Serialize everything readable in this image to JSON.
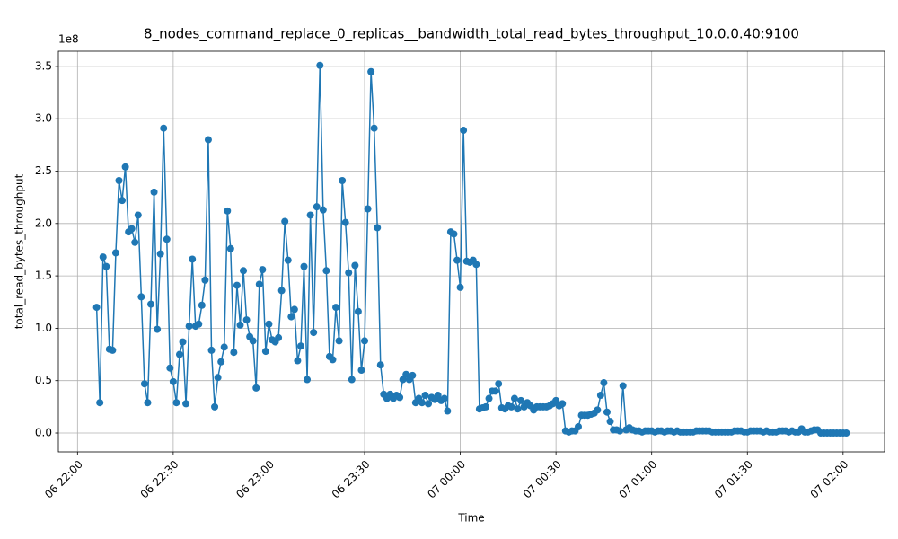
{
  "chart_data": {
    "type": "line",
    "title": "8_nodes_command_replace_0_replicas__bandwidth_total_read_bytes_throughput_10.0.0.40:9100",
    "x_label": "Time",
    "y_label": "total_read_bytes_throughput",
    "y_offset_label": "1e8",
    "x": [
      "06 22:06",
      "06 22:07",
      "06 22:08",
      "06 22:09",
      "06 22:10",
      "06 22:11",
      "06 22:12",
      "06 22:13",
      "06 22:14",
      "06 22:15",
      "06 22:16",
      "06 22:17",
      "06 22:18",
      "06 22:19",
      "06 22:20",
      "06 22:21",
      "06 22:22",
      "06 22:23",
      "06 22:24",
      "06 22:25",
      "06 22:26",
      "06 22:27",
      "06 22:28",
      "06 22:29",
      "06 22:30",
      "06 22:31",
      "06 22:32",
      "06 22:33",
      "06 22:34",
      "06 22:35",
      "06 22:36",
      "06 22:37",
      "06 22:38",
      "06 22:39",
      "06 22:40",
      "06 22:41",
      "06 22:42",
      "06 22:43",
      "06 22:44",
      "06 22:45",
      "06 22:46",
      "06 22:47",
      "06 22:48",
      "06 22:49",
      "06 22:50",
      "06 22:51",
      "06 22:52",
      "06 22:53",
      "06 22:54",
      "06 22:55",
      "06 22:56",
      "06 22:57",
      "06 22:58",
      "06 22:59",
      "06 23:00",
      "06 23:01",
      "06 23:02",
      "06 23:03",
      "06 23:04",
      "06 23:05",
      "06 23:06",
      "06 23:07",
      "06 23:08",
      "06 23:09",
      "06 23:10",
      "06 23:11",
      "06 23:12",
      "06 23:13",
      "06 23:14",
      "06 23:15",
      "06 23:16",
      "06 23:17",
      "06 23:18",
      "06 23:19",
      "06 23:20",
      "06 23:21",
      "06 23:22",
      "06 23:23",
      "06 23:24",
      "06 23:25",
      "06 23:26",
      "06 23:27",
      "06 23:28",
      "06 23:29",
      "06 23:30",
      "06 23:31",
      "06 23:32",
      "06 23:33",
      "06 23:34",
      "06 23:35",
      "06 23:36",
      "06 23:37",
      "06 23:38",
      "06 23:39",
      "06 23:40",
      "06 23:41",
      "06 23:42",
      "06 23:43",
      "06 23:44",
      "06 23:45",
      "06 23:46",
      "06 23:47",
      "06 23:48",
      "06 23:49",
      "06 23:50",
      "06 23:51",
      "06 23:52",
      "06 23:53",
      "06 23:54",
      "06 23:55",
      "06 23:56",
      "06 23:57",
      "06 23:58",
      "06 23:59",
      "07 00:00",
      "07 00:01",
      "07 00:02",
      "07 00:03",
      "07 00:04",
      "07 00:05",
      "07 00:06",
      "07 00:07",
      "07 00:08",
      "07 00:09",
      "07 00:10",
      "07 00:11",
      "07 00:12",
      "07 00:13",
      "07 00:14",
      "07 00:15",
      "07 00:16",
      "07 00:17",
      "07 00:18",
      "07 00:19",
      "07 00:20",
      "07 00:21",
      "07 00:22",
      "07 00:23",
      "07 00:24",
      "07 00:25",
      "07 00:26",
      "07 00:27",
      "07 00:28",
      "07 00:29",
      "07 00:30",
      "07 00:31",
      "07 00:32",
      "07 00:33",
      "07 00:34",
      "07 00:35",
      "07 00:36",
      "07 00:37",
      "07 00:38",
      "07 00:39",
      "07 00:40",
      "07 00:41",
      "07 00:42",
      "07 00:43",
      "07 00:44",
      "07 00:45",
      "07 00:46",
      "07 00:47",
      "07 00:48",
      "07 00:49",
      "07 00:50",
      "07 00:51",
      "07 00:52",
      "07 00:53",
      "07 00:54",
      "07 00:55",
      "07 00:56",
      "07 00:57",
      "07 00:58",
      "07 00:59",
      "07 01:00",
      "07 01:01",
      "07 01:02",
      "07 01:03",
      "07 01:04",
      "07 01:05",
      "07 01:06",
      "07 01:07",
      "07 01:08",
      "07 01:09",
      "07 01:10",
      "07 01:11",
      "07 01:12",
      "07 01:13",
      "07 01:14",
      "07 01:15",
      "07 01:16",
      "07 01:17",
      "07 01:18",
      "07 01:19",
      "07 01:20",
      "07 01:21",
      "07 01:22",
      "07 01:23",
      "07 01:24",
      "07 01:25",
      "07 01:26",
      "07 01:27",
      "07 01:28",
      "07 01:29",
      "07 01:30",
      "07 01:31",
      "07 01:32",
      "07 01:33",
      "07 01:34",
      "07 01:35",
      "07 01:36",
      "07 01:37",
      "07 01:38",
      "07 01:39",
      "07 01:40",
      "07 01:41",
      "07 01:42",
      "07 01:43",
      "07 01:44",
      "07 01:45",
      "07 01:46",
      "07 01:47",
      "07 01:48",
      "07 01:49",
      "07 01:50",
      "07 01:51",
      "07 01:52",
      "07 01:53",
      "07 01:54",
      "07 01:55",
      "07 01:56",
      "07 01:57",
      "07 01:58",
      "07 01:59",
      "07 02:00",
      "07 02:01"
    ],
    "values": [
      1.2,
      0.29,
      1.68,
      1.59,
      0.8,
      0.79,
      1.72,
      2.41,
      2.22,
      2.54,
      1.92,
      1.95,
      1.82,
      2.08,
      1.3,
      0.47,
      0.29,
      1.23,
      2.3,
      0.99,
      1.71,
      2.91,
      1.85,
      0.62,
      0.49,
      0.29,
      0.75,
      0.87,
      0.28,
      1.02,
      1.66,
      1.02,
      1.04,
      1.22,
      1.46,
      2.8,
      0.79,
      0.25,
      0.53,
      0.68,
      0.82,
      2.12,
      1.76,
      0.77,
      1.41,
      1.03,
      1.55,
      1.08,
      0.92,
      0.88,
      0.43,
      1.42,
      1.56,
      0.78,
      1.04,
      0.89,
      0.87,
      0.91,
      1.36,
      2.02,
      1.65,
      1.11,
      1.18,
      0.69,
      0.83,
      1.59,
      0.51,
      2.08,
      0.96,
      2.16,
      3.51,
      2.13,
      1.55,
      0.73,
      0.7,
      1.2,
      0.88,
      2.41,
      2.01,
      1.53,
      0.51,
      1.6,
      1.16,
      0.6,
      0.88,
      2.14,
      3.45,
      2.91,
      1.96,
      0.65,
      0.37,
      0.33,
      0.37,
      0.33,
      0.36,
      0.34,
      0.51,
      0.56,
      0.51,
      0.55,
      0.29,
      0.33,
      0.29,
      0.36,
      0.28,
      0.34,
      0.32,
      0.36,
      0.31,
      0.33,
      0.21,
      1.92,
      1.9,
      1.65,
      1.39,
      2.89,
      1.64,
      1.63,
      1.65,
      1.61,
      0.23,
      0.24,
      0.25,
      0.33,
      0.4,
      0.4,
      0.47,
      0.24,
      0.23,
      0.26,
      0.25,
      0.33,
      0.23,
      0.31,
      0.25,
      0.29,
      0.26,
      0.22,
      0.25,
      0.25,
      0.25,
      0.25,
      0.26,
      0.28,
      0.31,
      0.26,
      0.28,
      0.02,
      0.01,
      0.02,
      0.02,
      0.06,
      0.17,
      0.17,
      0.17,
      0.18,
      0.19,
      0.22,
      0.36,
      0.48,
      0.2,
      0.11,
      0.03,
      0.03,
      0.02,
      0.45,
      0.03,
      0.05,
      0.03,
      0.02,
      0.02,
      0.01,
      0.02,
      0.02,
      0.02,
      0.01,
      0.02,
      0.02,
      0.01,
      0.02,
      0.02,
      0.01,
      0.02,
      0.01,
      0.01,
      0.01,
      0.01,
      0.01,
      0.02,
      0.02,
      0.02,
      0.02,
      0.02,
      0.01,
      0.01,
      0.01,
      0.01,
      0.01,
      0.01,
      0.01,
      0.02,
      0.02,
      0.02,
      0.01,
      0.01,
      0.02,
      0.02,
      0.02,
      0.02,
      0.01,
      0.02,
      0.01,
      0.01,
      0.01,
      0.02,
      0.02,
      0.02,
      0.01,
      0.02,
      0.01,
      0.01,
      0.04,
      0.01,
      0.01,
      0.02,
      0.03,
      0.03,
      0.0,
      0.0,
      0.0,
      0.0,
      0.0,
      0.0,
      0.0,
      0.0,
      0.0
    ],
    "color": "#1f77b4",
    "grid": true,
    "xlim": [
      "06 21:54",
      "07 02:13"
    ],
    "xticks": [
      "06 22:00",
      "06 22:30",
      "06 23:00",
      "06 23:30",
      "07 00:00",
      "07 00:30",
      "07 01:00",
      "07 01:30",
      "07 02:00"
    ],
    "ylim": [
      -0.18,
      3.645
    ],
    "yticks": [
      {
        "value": 0,
        "label": "0.0"
      },
      0.5,
      {
        "value": 1,
        "label": "1.0"
      },
      1.5,
      {
        "value": 2,
        "label": "2.0"
      },
      2.5,
      {
        "value": 3,
        "label": "3.0"
      },
      3.5
    ]
  }
}
